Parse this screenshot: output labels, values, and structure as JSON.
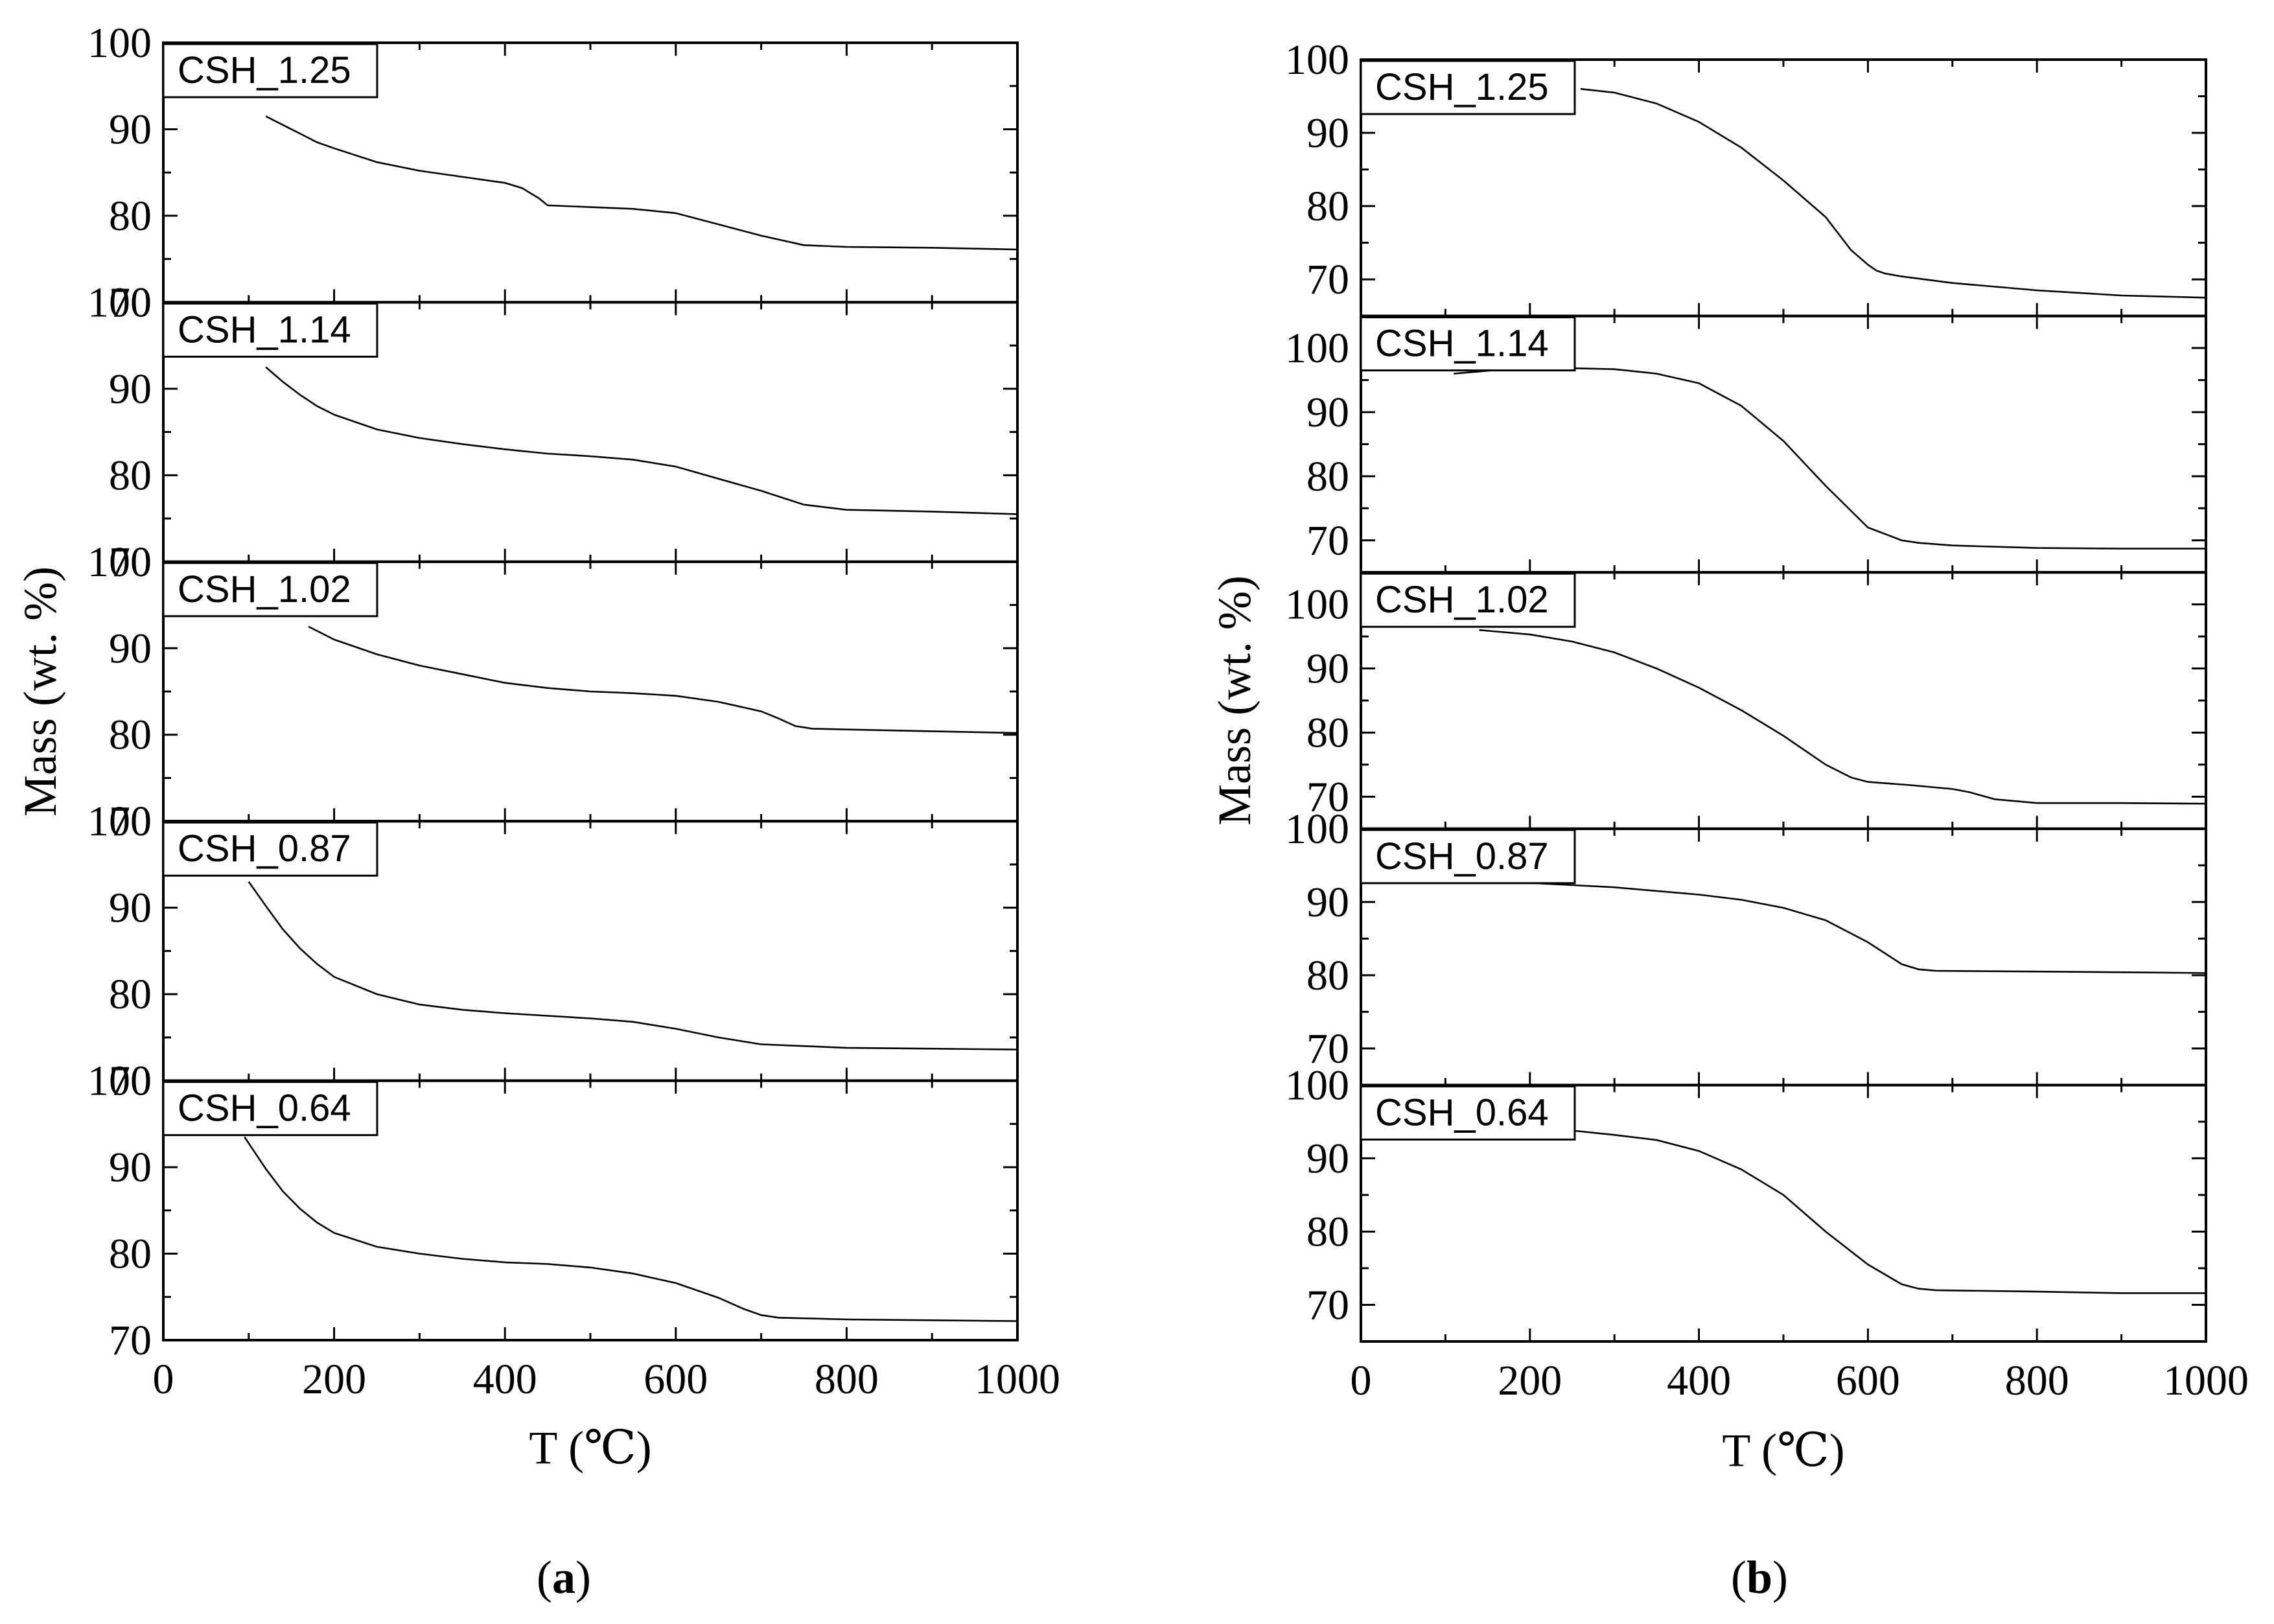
{
  "figure": {
    "caption_a_open": "(",
    "caption_a_letter": "a",
    "caption_a_close": ")",
    "caption_b_open": "(",
    "caption_b_letter": "b",
    "caption_b_close": ")"
  },
  "chart_data": [
    {
      "id": "a",
      "type": "line",
      "xlabel": "T (℃)",
      "ylabel": "Mass (wt. %)",
      "xlim": [
        0,
        1000
      ],
      "x_ticks": [
        0,
        200,
        400,
        600,
        800,
        1000
      ],
      "panels": [
        {
          "name": "CSH_1.25",
          "ylim": [
            70,
            100
          ],
          "y_ticks": [
            70,
            80,
            90,
            100
          ],
          "x": [
            120,
            140,
            160,
            180,
            200,
            250,
            300,
            350,
            400,
            420,
            440,
            450,
            500,
            550,
            600,
            650,
            700,
            750,
            800,
            900,
            1000
          ],
          "y": [
            91.5,
            90.5,
            89.5,
            88.5,
            87.8,
            86.2,
            85.2,
            84.5,
            83.8,
            83.2,
            82.0,
            81.2,
            81.0,
            80.8,
            80.3,
            79.0,
            77.7,
            76.6,
            76.4,
            76.3,
            76.1
          ]
        },
        {
          "name": "CSH_1.14",
          "ylim": [
            70,
            100
          ],
          "y_ticks": [
            70,
            80,
            90,
            100
          ],
          "x": [
            120,
            140,
            160,
            180,
            200,
            250,
            300,
            350,
            400,
            450,
            500,
            550,
            600,
            650,
            700,
            750,
            800,
            900,
            1000
          ],
          "y": [
            92.5,
            90.8,
            89.3,
            88.0,
            87.0,
            85.3,
            84.3,
            83.6,
            83.0,
            82.5,
            82.2,
            81.8,
            81.0,
            79.6,
            78.2,
            76.6,
            76.0,
            75.8,
            75.5
          ]
        },
        {
          "name": "CSH_1.02",
          "ylim": [
            70,
            100
          ],
          "y_ticks": [
            70,
            80,
            90,
            100
          ],
          "x": [
            170,
            200,
            250,
            300,
            350,
            400,
            450,
            500,
            550,
            600,
            650,
            700,
            720,
            740,
            760,
            800,
            900,
            1000
          ],
          "y": [
            92.5,
            91.0,
            89.3,
            88.0,
            87.0,
            86.0,
            85.4,
            85.0,
            84.8,
            84.5,
            83.8,
            82.7,
            81.9,
            81.0,
            80.7,
            80.6,
            80.4,
            80.2
          ]
        },
        {
          "name": "CSH_0.87",
          "ylim": [
            70,
            100
          ],
          "y_ticks": [
            70,
            80,
            90,
            100
          ],
          "x": [
            100,
            120,
            140,
            160,
            180,
            200,
            250,
            300,
            350,
            400,
            450,
            500,
            550,
            600,
            650,
            700,
            750,
            800,
            900,
            1000
          ],
          "y": [
            93.0,
            90.2,
            87.5,
            85.3,
            83.5,
            82.0,
            80.0,
            78.8,
            78.2,
            77.8,
            77.5,
            77.2,
            76.8,
            76.0,
            75.0,
            74.2,
            74.0,
            73.8,
            73.7,
            73.6
          ]
        },
        {
          "name": "CSH_0.64",
          "ylim": [
            70,
            100
          ],
          "y_ticks": [
            70,
            80,
            90,
            100
          ],
          "x": [
            95,
            120,
            140,
            160,
            180,
            200,
            250,
            300,
            350,
            400,
            450,
            500,
            550,
            600,
            650,
            680,
            700,
            720,
            800,
            900,
            1000
          ],
          "y": [
            93.5,
            89.8,
            87.2,
            85.2,
            83.6,
            82.4,
            80.8,
            80.0,
            79.4,
            79.0,
            78.8,
            78.4,
            77.7,
            76.6,
            74.9,
            73.6,
            72.9,
            72.6,
            72.4,
            72.3,
            72.2
          ]
        }
      ]
    },
    {
      "id": "b",
      "type": "line",
      "xlabel": "T (℃)",
      "ylabel": "Mass (wt. %)",
      "xlim": [
        0,
        1000
      ],
      "x_ticks": [
        0,
        200,
        400,
        600,
        800,
        1000
      ],
      "panels": [
        {
          "name": "CSH_1.25",
          "ylim": [
            65,
            100
          ],
          "y_ticks": [
            70,
            80,
            90,
            100
          ],
          "x": [
            260,
            300,
            350,
            400,
            450,
            500,
            550,
            580,
            600,
            610,
            620,
            640,
            700,
            800,
            900,
            1000
          ],
          "y": [
            96.0,
            95.5,
            94.0,
            91.5,
            88.0,
            83.5,
            78.5,
            74.0,
            72.0,
            71.2,
            70.8,
            70.4,
            69.5,
            68.5,
            67.8,
            67.5
          ]
        },
        {
          "name": "CSH_1.14",
          "ylim": [
            65,
            105
          ],
          "y_ticks": [
            70,
            80,
            90,
            100
          ],
          "x": [
            110,
            200,
            300,
            350,
            400,
            450,
            500,
            550,
            600,
            640,
            660,
            680,
            700,
            800,
            900,
            1000
          ],
          "y": [
            96.0,
            97.0,
            96.7,
            96.0,
            94.5,
            91.0,
            85.5,
            78.5,
            72.0,
            70.0,
            69.6,
            69.4,
            69.2,
            68.8,
            68.7,
            68.7
          ]
        },
        {
          "name": "CSH_1.02",
          "ylim": [
            65,
            105
          ],
          "y_ticks": [
            70,
            80,
            90,
            100
          ],
          "x": [
            140,
            200,
            250,
            300,
            350,
            400,
            450,
            500,
            550,
            580,
            600,
            650,
            700,
            720,
            750,
            800,
            900,
            1000
          ],
          "y": [
            96.0,
            95.3,
            94.2,
            92.5,
            90.0,
            87.0,
            83.5,
            79.5,
            75.0,
            73.0,
            72.3,
            71.8,
            71.2,
            70.7,
            69.6,
            69.0,
            69.0,
            68.9
          ]
        },
        {
          "name": "CSH_0.87",
          "ylim": [
            65,
            100
          ],
          "y_ticks": [
            70,
            80,
            90,
            100
          ],
          "x": [
            150,
            200,
            300,
            400,
            450,
            500,
            550,
            600,
            640,
            660,
            680,
            800,
            900,
            1000
          ],
          "y": [
            92.8,
            92.6,
            92.0,
            91.0,
            90.3,
            89.2,
            87.5,
            84.5,
            81.5,
            80.8,
            80.6,
            80.5,
            80.4,
            80.3
          ]
        },
        {
          "name": "CSH_0.64",
          "ylim": [
            65,
            100
          ],
          "y_ticks": [
            70,
            80,
            90,
            100
          ],
          "x": [
            180,
            250,
            300,
            350,
            400,
            450,
            500,
            550,
            600,
            640,
            660,
            680,
            800,
            900,
            1000
          ],
          "y": [
            94.0,
            93.8,
            93.2,
            92.5,
            91.0,
            88.5,
            85.0,
            80.0,
            75.5,
            72.8,
            72.2,
            72.0,
            71.8,
            71.6,
            71.6
          ]
        }
      ]
    }
  ]
}
